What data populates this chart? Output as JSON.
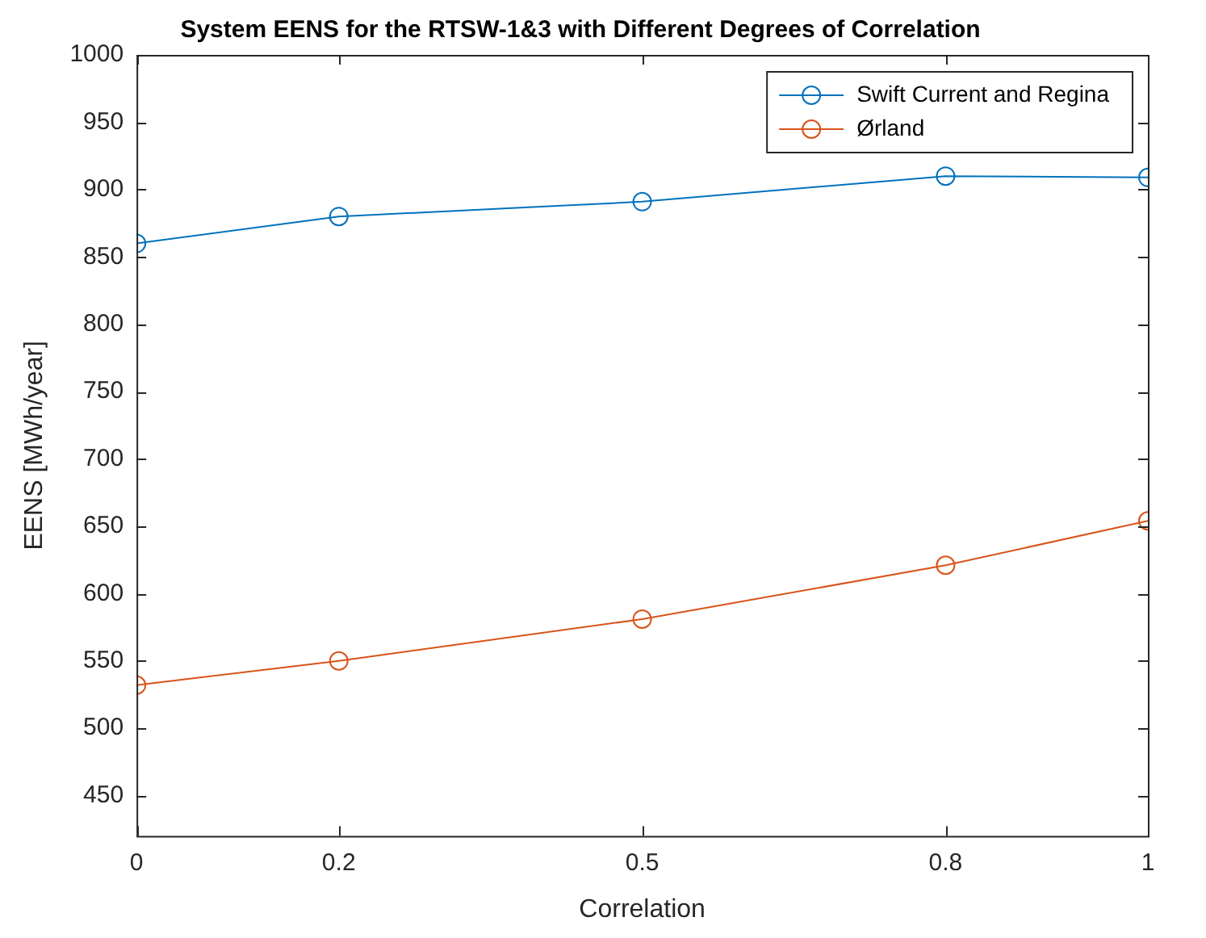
{
  "chart_data": {
    "type": "line",
    "title": "System EENS for the RTSW-1&3 with Different Degrees of Correlation",
    "xlabel": "Correlation",
    "ylabel": "EENS [MWh/year]",
    "x": [
      0,
      0.2,
      0.5,
      0.8,
      1
    ],
    "series": [
      {
        "name": "Swift Current and Regina",
        "color": "#0072bd",
        "values": [
          860,
          880,
          891,
          910,
          909
        ]
      },
      {
        "name": "Ørland",
        "color": "#d95319",
        "values": [
          532,
          550,
          581,
          621,
          654
        ]
      }
    ],
    "xlim": [
      0,
      1
    ],
    "xticks": [
      0,
      0.2,
      0.5,
      0.8,
      1
    ],
    "ylim": [
      420,
      1000
    ],
    "yticks": [
      450,
      500,
      550,
      600,
      650,
      700,
      750,
      800,
      850,
      900,
      950,
      1000
    ],
    "legend": "top right",
    "marker": "circle",
    "line_style": "solid",
    "grid": false
  }
}
